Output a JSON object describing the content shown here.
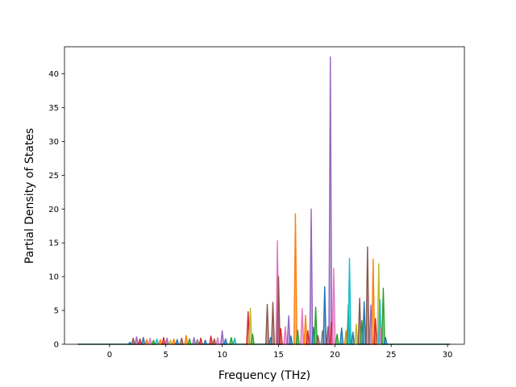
{
  "chart_data": {
    "type": "area",
    "title": "",
    "xlabel": "Frequency (THz)",
    "ylabel": "Partial Density of States",
    "xlim": [
      -4,
      31.5
    ],
    "ylim": [
      0,
      44
    ],
    "xticks": [
      0,
      5,
      10,
      15,
      20,
      25,
      30
    ],
    "yticks": [
      0,
      5,
      10,
      15,
      20,
      25,
      30,
      35,
      40
    ],
    "x_range": [
      -2.8,
      30.2
    ],
    "grid": false,
    "legend": "none",
    "colors": [
      "#1f77b4",
      "#ff7f0e",
      "#2ca02c",
      "#d62728",
      "#9467bd",
      "#8c564b",
      "#e377c2",
      "#7f7f7f",
      "#bcbd22",
      "#17becf"
    ],
    "peaks": [
      {
        "x": 1.8,
        "y": 0.3,
        "c": 0
      },
      {
        "x": 2.1,
        "y": 0.9,
        "c": 5
      },
      {
        "x": 2.4,
        "y": 1.1,
        "c": 4
      },
      {
        "x": 2.7,
        "y": 0.8,
        "c": 3
      },
      {
        "x": 3.0,
        "y": 1.0,
        "c": 0
      },
      {
        "x": 3.3,
        "y": 0.7,
        "c": 1
      },
      {
        "x": 3.6,
        "y": 0.9,
        "c": 6
      },
      {
        "x": 3.9,
        "y": 0.6,
        "c": 2
      },
      {
        "x": 4.2,
        "y": 0.8,
        "c": 9
      },
      {
        "x": 4.5,
        "y": 0.7,
        "c": 1
      },
      {
        "x": 4.8,
        "y": 1.0,
        "c": 3
      },
      {
        "x": 5.1,
        "y": 0.9,
        "c": 4
      },
      {
        "x": 5.4,
        "y": 0.6,
        "c": 8
      },
      {
        "x": 5.7,
        "y": 0.8,
        "c": 1
      },
      {
        "x": 6.0,
        "y": 0.7,
        "c": 0
      },
      {
        "x": 6.4,
        "y": 0.9,
        "c": 5
      },
      {
        "x": 6.8,
        "y": 1.3,
        "c": 1
      },
      {
        "x": 7.1,
        "y": 0.8,
        "c": 2
      },
      {
        "x": 7.5,
        "y": 1.0,
        "c": 4
      },
      {
        "x": 7.8,
        "y": 0.7,
        "c": 7
      },
      {
        "x": 8.1,
        "y": 0.9,
        "c": 3
      },
      {
        "x": 8.5,
        "y": 0.6,
        "c": 0
      },
      {
        "x": 9.0,
        "y": 1.2,
        "c": 3
      },
      {
        "x": 9.3,
        "y": 0.8,
        "c": 5
      },
      {
        "x": 9.6,
        "y": 1.0,
        "c": 6
      },
      {
        "x": 10.0,
        "y": 2.0,
        "c": 4
      },
      {
        "x": 10.3,
        "y": 0.8,
        "c": 0
      },
      {
        "x": 10.8,
        "y": 1.0,
        "c": 2
      },
      {
        "x": 11.1,
        "y": 0.9,
        "c": 9
      },
      {
        "x": 12.3,
        "y": 4.8,
        "c": 3
      },
      {
        "x": 12.5,
        "y": 5.3,
        "c": 8
      },
      {
        "x": 12.7,
        "y": 1.5,
        "c": 2
      },
      {
        "x": 14.0,
        "y": 5.9,
        "c": 5
      },
      {
        "x": 14.3,
        "y": 1.0,
        "c": 0
      },
      {
        "x": 14.5,
        "y": 6.2,
        "c": 5
      },
      {
        "x": 14.9,
        "y": 15.3,
        "c": 6
      },
      {
        "x": 15.0,
        "y": 10.0,
        "c": 5
      },
      {
        "x": 15.2,
        "y": 2.3,
        "c": 3
      },
      {
        "x": 15.6,
        "y": 2.6,
        "c": 6
      },
      {
        "x": 15.9,
        "y": 4.2,
        "c": 4
      },
      {
        "x": 16.1,
        "y": 1.2,
        "c": 0
      },
      {
        "x": 16.5,
        "y": 19.3,
        "c": 1
      },
      {
        "x": 16.7,
        "y": 2.1,
        "c": 2
      },
      {
        "x": 17.1,
        "y": 5.3,
        "c": 6
      },
      {
        "x": 17.4,
        "y": 4.3,
        "c": 1
      },
      {
        "x": 17.6,
        "y": 2.0,
        "c": 3
      },
      {
        "x": 17.9,
        "y": 20.0,
        "c": 4
      },
      {
        "x": 18.1,
        "y": 2.5,
        "c": 0
      },
      {
        "x": 18.3,
        "y": 5.5,
        "c": 2
      },
      {
        "x": 18.5,
        "y": 1.3,
        "c": 5
      },
      {
        "x": 18.9,
        "y": 2.0,
        "c": 7
      },
      {
        "x": 19.1,
        "y": 8.5,
        "c": 0
      },
      {
        "x": 19.4,
        "y": 2.6,
        "c": 3
      },
      {
        "x": 19.6,
        "y": 42.5,
        "c": 4
      },
      {
        "x": 19.7,
        "y": 3.3,
        "c": 3
      },
      {
        "x": 19.9,
        "y": 11.2,
        "c": 6
      },
      {
        "x": 20.2,
        "y": 1.5,
        "c": 2
      },
      {
        "x": 20.6,
        "y": 2.4,
        "c": 0
      },
      {
        "x": 21.0,
        "y": 2.0,
        "c": 1
      },
      {
        "x": 21.2,
        "y": 5.8,
        "c": 2
      },
      {
        "x": 21.3,
        "y": 12.7,
        "c": 9
      },
      {
        "x": 21.6,
        "y": 1.8,
        "c": 0
      },
      {
        "x": 21.9,
        "y": 3.0,
        "c": 8
      },
      {
        "x": 22.2,
        "y": 6.8,
        "c": 5
      },
      {
        "x": 22.4,
        "y": 3.5,
        "c": 2
      },
      {
        "x": 22.6,
        "y": 6.3,
        "c": 0
      },
      {
        "x": 22.9,
        "y": 14.4,
        "c": 5
      },
      {
        "x": 23.2,
        "y": 5.8,
        "c": 4
      },
      {
        "x": 23.4,
        "y": 12.6,
        "c": 1
      },
      {
        "x": 23.6,
        "y": 3.8,
        "c": 3
      },
      {
        "x": 23.9,
        "y": 11.9,
        "c": 8
      },
      {
        "x": 24.0,
        "y": 6.6,
        "c": 9
      },
      {
        "x": 24.1,
        "y": 2.5,
        "c": 6
      },
      {
        "x": 24.3,
        "y": 8.3,
        "c": 2
      },
      {
        "x": 24.5,
        "y": 1.0,
        "c": 0
      }
    ]
  }
}
